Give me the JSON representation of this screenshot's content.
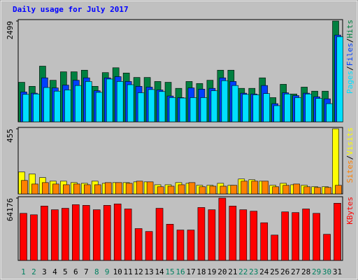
{
  "chart_data": [
    {
      "type": "bar",
      "title": "Daily usage for July 2017",
      "ylim": [
        0,
        2499
      ],
      "yticks": [
        2499
      ],
      "legend_separator": "/",
      "series": [
        {
          "name": "Hits",
          "color": "#008040",
          "values": [
            980,
            880,
            1380,
            1030,
            1240,
            1240,
            1280,
            880,
            1220,
            1340,
            1210,
            1100,
            1100,
            1000,
            980,
            830,
            1000,
            950,
            1030,
            1280,
            1280,
            830,
            830,
            1090,
            600,
            930,
            690,
            860,
            760,
            760,
            2499
          ]
        },
        {
          "name": "Files",
          "color": "#0040ff",
          "values": [
            740,
            710,
            1090,
            840,
            910,
            1030,
            1090,
            770,
            1090,
            1120,
            1000,
            880,
            860,
            790,
            640,
            600,
            840,
            810,
            830,
            1090,
            1000,
            710,
            690,
            900,
            450,
            720,
            650,
            710,
            620,
            570,
            2150
          ]
        },
        {
          "name": "Pages",
          "color": "#00e0ff",
          "values": [
            680,
            690,
            850,
            760,
            790,
            900,
            1000,
            730,
            1060,
            1000,
            920,
            720,
            800,
            750,
            600,
            590,
            600,
            600,
            770,
            1020,
            900,
            680,
            670,
            700,
            400,
            690,
            600,
            690,
            580,
            450,
            2110
          ]
        }
      ]
    },
    {
      "type": "bar",
      "ylim": [
        0,
        455
      ],
      "yticks": [
        455
      ],
      "legend_separator": "/",
      "series": [
        {
          "name": "Visits",
          "color": "#ffff00",
          "values": [
            153,
            139,
            114,
            89,
            89,
            79,
            74,
            89,
            74,
            79,
            79,
            84,
            84,
            64,
            64,
            79,
            74,
            60,
            60,
            74,
            60,
            104,
            99,
            89,
            60,
            74,
            64,
            60,
            50,
            50,
            455
          ]
        },
        {
          "name": "Sites",
          "color": "#ff8000",
          "values": [
            94,
            69,
            79,
            69,
            64,
            69,
            64,
            64,
            79,
            79,
            74,
            89,
            84,
            50,
            54,
            64,
            79,
            50,
            54,
            54,
            60,
            89,
            89,
            89,
            50,
            60,
            69,
            50,
            45,
            45,
            60
          ]
        }
      ]
    },
    {
      "type": "bar",
      "ylim": [
        0,
        64176
      ],
      "yticks": [
        64176
      ],
      "categories": [
        "1",
        "2",
        "3",
        "4",
        "5",
        "6",
        "7",
        "8",
        "9",
        "10",
        "11",
        "12",
        "13",
        "14",
        "15",
        "16",
        "17",
        "18",
        "19",
        "20",
        "21",
        "22",
        "23",
        "24",
        "25",
        "26",
        "27",
        "28",
        "29",
        "30",
        "31"
      ],
      "category_colors": [
        "#008060",
        "#008060",
        "#000000",
        "#000000",
        "#000000",
        "#000000",
        "#000000",
        "#008060",
        "#008060",
        "#000000",
        "#000000",
        "#000000",
        "#000000",
        "#000000",
        "#008060",
        "#008060",
        "#000000",
        "#000000",
        "#000000",
        "#000000",
        "#000000",
        "#008060",
        "#008060",
        "#000000",
        "#000000",
        "#000000",
        "#000000",
        "#000000",
        "#008060",
        "#008060",
        "#000000"
      ],
      "series": [
        {
          "name": "KBytes",
          "color": "#ff0000",
          "values": [
            48500,
            47000,
            56000,
            52200,
            53700,
            57400,
            56700,
            52200,
            56700,
            58200,
            53000,
            32800,
            29800,
            53700,
            37300,
            31300,
            31300,
            54500,
            52200,
            64176,
            56000,
            52200,
            50700,
            38800,
            26100,
            50000,
            49300,
            53000,
            48500,
            26900,
            58900
          ]
        }
      ]
    }
  ]
}
